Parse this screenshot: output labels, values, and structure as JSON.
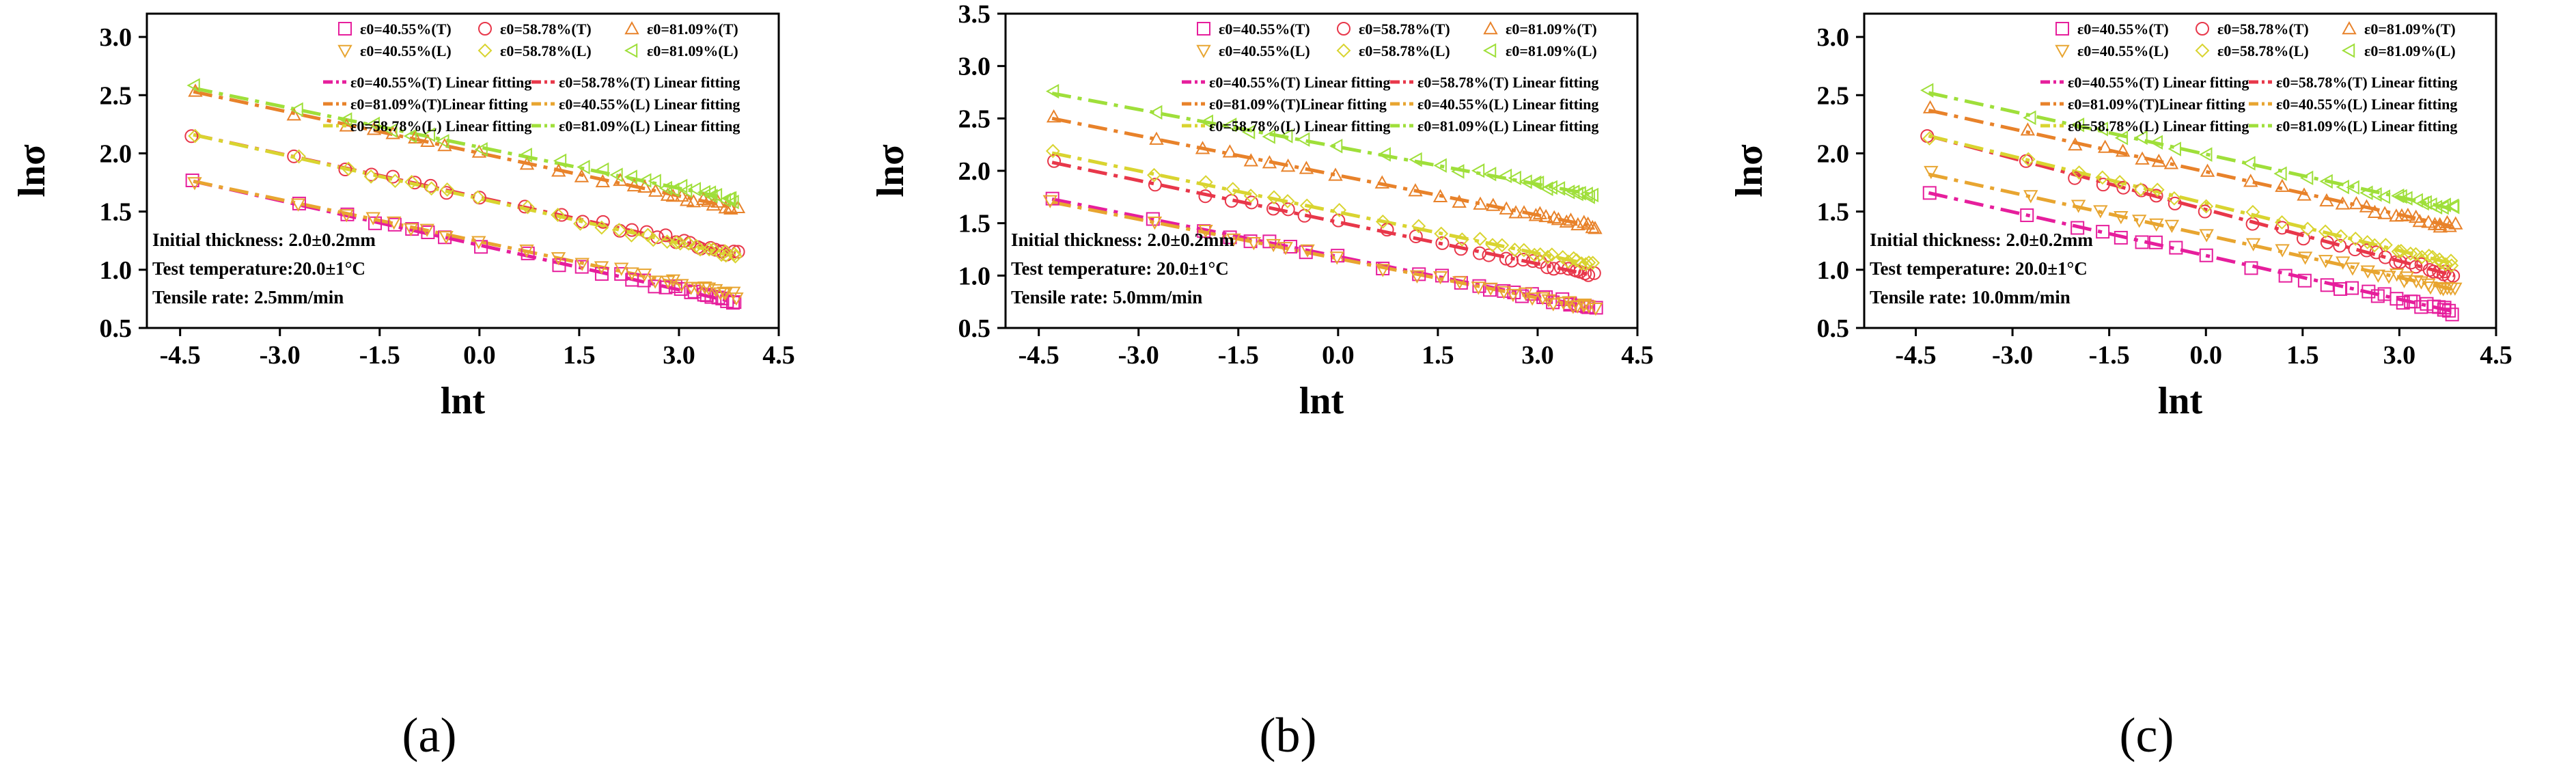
{
  "colors": {
    "T40": "#e61e9c",
    "T58": "#e8374a",
    "T81": "#e8822a",
    "L40": "#e8a530",
    "L58": "#d9d430",
    "L81": "#9fdf3a"
  },
  "legend": {
    "markers": [
      {
        "key": "T40",
        "shape": "square",
        "label": "ε0=40.55%(T)"
      },
      {
        "key": "T58",
        "shape": "circle",
        "label": "ε0=58.78%(T)"
      },
      {
        "key": "T81",
        "shape": "triangle-up",
        "label": "ε0=81.09%(T)"
      },
      {
        "key": "L40",
        "shape": "triangle-down",
        "label": "ε0=40.55%(L)"
      },
      {
        "key": "L58",
        "shape": "diamond",
        "label": "ε0=58.78%(L)"
      },
      {
        "key": "L81",
        "shape": "triangle-left",
        "label": "ε0=81.09%(L)"
      }
    ],
    "fits": [
      {
        "key": "T40",
        "label": "ε0=40.55%(T) Linear fitting"
      },
      {
        "key": "T58",
        "label": "ε0=58.78%(T) Linear fitting"
      },
      {
        "key": "T81",
        "label": "ε0=81.09%(T)Linear fitting"
      },
      {
        "key": "L40",
        "label": "ε0=40.55%(L) Linear fitting"
      },
      {
        "key": "L58",
        "label": "ε0=58.78%(L) Linear fitting"
      },
      {
        "key": "L81",
        "label": "ε0=81.09%(L) Linear fitting"
      }
    ]
  },
  "chart_data": [
    {
      "type": "scatter",
      "caption": "(a)",
      "xlabel": "lnt",
      "ylabel": "lnσ",
      "xlim": [
        -5.0,
        4.5
      ],
      "ylim": [
        0.5,
        3.2
      ],
      "xticks": [
        "-4.5",
        "-3.0",
        "-1.5",
        "0.0",
        "1.5",
        "3.0",
        "4.5"
      ],
      "yticks": [
        "0.5",
        "1.0",
        "1.5",
        "2.0",
        "2.5",
        "3.0"
      ],
      "x_start": -4.3,
      "x_end": 3.85,
      "annotation": [
        "Initial thickness: 2.0±0.2mm",
        "Test temperature:20.0±1°C",
        "Tensile rate: 2.5mm/min"
      ],
      "series": [
        {
          "key": "T40",
          "y_start": 1.76,
          "y_end": 0.72
        },
        {
          "key": "T58",
          "y_start": 2.16,
          "y_end": 1.14
        },
        {
          "key": "T81",
          "y_start": 2.53,
          "y_end": 1.53
        },
        {
          "key": "L40",
          "y_start": 1.76,
          "y_end": 0.78
        },
        {
          "key": "L58",
          "y_start": 2.16,
          "y_end": 1.12
        },
        {
          "key": "L81",
          "y_start": 2.56,
          "y_end": 1.6
        }
      ]
    },
    {
      "type": "scatter",
      "caption": "(b)",
      "xlabel": "lnt",
      "ylabel": "lnσ",
      "xlim": [
        -5.0,
        4.5
      ],
      "ylim": [
        0.5,
        3.5
      ],
      "xticks": [
        "-4.5",
        "-3.0",
        "-1.5",
        "0.0",
        "1.5",
        "3.0",
        "4.5"
      ],
      "yticks": [
        "0.5",
        "1.0",
        "1.5",
        "2.0",
        "2.5",
        "3.0",
        "3.5"
      ],
      "x_start": -4.3,
      "x_end": 3.85,
      "annotation": [
        "Initial thickness: 2.0±0.2mm",
        "Test temperature: 20.0±1°C",
        "Tensile rate: 5.0mm/min"
      ],
      "series": [
        {
          "key": "T40",
          "y_start": 1.73,
          "y_end": 0.69
        },
        {
          "key": "T58",
          "y_start": 2.08,
          "y_end": 1.0
        },
        {
          "key": "T81",
          "y_start": 2.5,
          "y_end": 1.47
        },
        {
          "key": "L40",
          "y_start": 1.7,
          "y_end": 0.68
        },
        {
          "key": "L58",
          "y_start": 2.17,
          "y_end": 1.1
        },
        {
          "key": "L81",
          "y_start": 2.74,
          "y_end": 1.77
        }
      ]
    },
    {
      "type": "scatter",
      "caption": "(c)",
      "xlabel": "lnt",
      "ylabel": "lnσ",
      "xlim": [
        -5.3,
        4.5
      ],
      "ylim": [
        0.5,
        3.2
      ],
      "xticks": [
        "-4.5",
        "-3.0",
        "-1.5",
        "0.0",
        "1.5",
        "3.0",
        "4.5"
      ],
      "yticks": [
        "0.5",
        "1.0",
        "1.5",
        "2.0",
        "2.5",
        "3.0"
      ],
      "x_start": -4.3,
      "x_end": 3.85,
      "annotation": [
        "Initial thickness: 2.0±0.2mm",
        "Test temperature: 20.0±1°C",
        "Tensile rate: 10.0mm/min"
      ],
      "series": [
        {
          "key": "T40",
          "y_start": 1.66,
          "y_end": 0.64
        },
        {
          "key": "T58",
          "y_start": 2.15,
          "y_end": 0.95
        },
        {
          "key": "T81",
          "y_start": 2.37,
          "y_end": 1.37
        },
        {
          "key": "L40",
          "y_start": 1.82,
          "y_end": 0.83
        },
        {
          "key": "L58",
          "y_start": 2.15,
          "y_end": 1.05
        },
        {
          "key": "L81",
          "y_start": 2.52,
          "y_end": 1.52
        }
      ]
    }
  ]
}
